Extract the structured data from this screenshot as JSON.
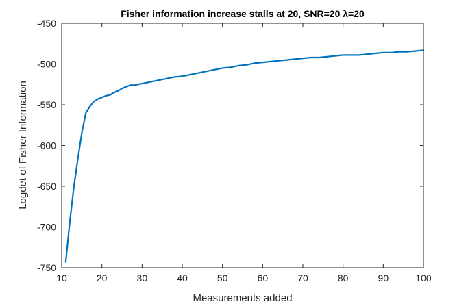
{
  "chart_data": {
    "type": "line",
    "title": "Fisher information increase stalls at 20, SNR=20 λ=20",
    "xlabel": "Measurements added",
    "ylabel": "Logdet of Fisher Information",
    "xlim": [
      10,
      100
    ],
    "ylim": [
      -750,
      -450
    ],
    "xticks": [
      10,
      20,
      30,
      40,
      50,
      60,
      70,
      80,
      90,
      100
    ],
    "yticks": [
      -750,
      -700,
      -650,
      -600,
      -550,
      -500,
      -450
    ],
    "grid": false,
    "series": [
      {
        "color": "#0072BD",
        "x": [
          11,
          12,
          13,
          14,
          15,
          16,
          17,
          18,
          19,
          20,
          21,
          22,
          23,
          24,
          25,
          26,
          27,
          28,
          29,
          30,
          32,
          34,
          36,
          38,
          40,
          42,
          44,
          46,
          48,
          50,
          52,
          54,
          56,
          58,
          60,
          62,
          64,
          66,
          68,
          70,
          72,
          74,
          76,
          78,
          80,
          82,
          84,
          86,
          88,
          90,
          92,
          94,
          96,
          98,
          100
        ],
        "y": [
          -743,
          -695,
          -652,
          -617,
          -585,
          -560,
          -552,
          -546,
          -543,
          -541,
          -539,
          -538,
          -535,
          -533,
          -530,
          -528,
          -526,
          -526,
          -525,
          -524,
          -522,
          -520,
          -518,
          -516,
          -515,
          -513,
          -511,
          -509,
          -507,
          -505,
          -504,
          -502,
          -501,
          -499,
          -498,
          -497,
          -496,
          -495,
          -494,
          -493,
          -492,
          -492,
          -491,
          -490,
          -489,
          -489,
          -489,
          -488,
          -487,
          -486,
          -486,
          -485,
          -485,
          -484,
          -483
        ]
      }
    ]
  }
}
